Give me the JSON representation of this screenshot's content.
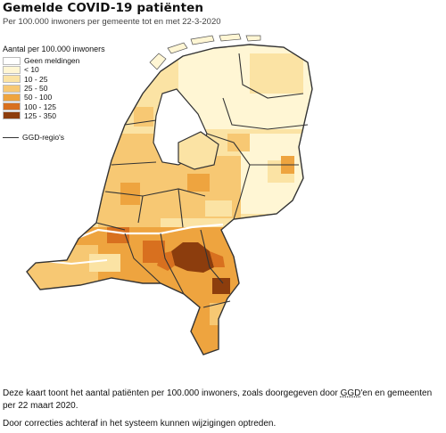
{
  "header": {
    "title": "Gemelde COVID-19 patiënten",
    "subtitle": "Per 100.000 inwoners per gemeente tot en met 22-3-2020"
  },
  "legend": {
    "title": "Aantal per 100.000 inwoners",
    "items": [
      {
        "label": "Geen meldingen",
        "color": "#ffffff"
      },
      {
        "label": "< 10",
        "color": "#fff6d4"
      },
      {
        "label": "10 - 25",
        "color": "#fbe3a4"
      },
      {
        "label": "25 - 50",
        "color": "#f7c873"
      },
      {
        "label": "50 - 100",
        "color": "#eea43f"
      },
      {
        "label": "100 - 125",
        "color": "#d8701f"
      },
      {
        "label": "125 - 350",
        "color": "#8c3d0d"
      }
    ],
    "ggd_label": "GGD-regio's"
  },
  "description": {
    "line1_prefix": "Deze kaart toont het aantal patiënten per 100.000 inwoners, zoals doorgegeven door ",
    "ggd_abbr": "GGD",
    "line1_suffix": "'en en gemeenten per 22 maart 2020.",
    "note": "Door correcties achteraf in het systeem kunnen wijzigingen optreden."
  },
  "colors": {
    "water": "#ffffff",
    "border": "#333333",
    "highlight": "#8c3d0d"
  }
}
